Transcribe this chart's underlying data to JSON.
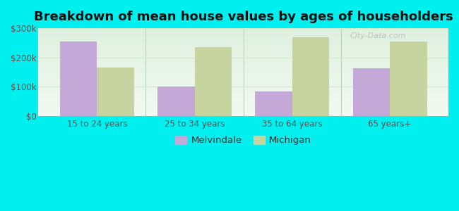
{
  "title": "Breakdown of mean house values by ages of householders",
  "categories": [
    "15 to 24 years",
    "25 to 34 years",
    "35 to 64 years",
    "65 years+"
  ],
  "melvindale": [
    255000,
    100000,
    83000,
    163000
  ],
  "michigan": [
    165000,
    235000,
    270000,
    255000
  ],
  "melvindale_color": "#c4a8d8",
  "michigan_color": "#c8d4a0",
  "background_color": "#00efef",
  "plot_bg_top": "#e8f5e8",
  "plot_bg_bottom": "#f5fdf5",
  "ylim": [
    0,
    300000
  ],
  "yticks": [
    0,
    100000,
    200000,
    300000
  ],
  "ytick_labels": [
    "$0",
    "$100k",
    "$200k",
    "$300k"
  ],
  "legend_melvindale": "Melvindale",
  "legend_michigan": "Michigan",
  "bar_width": 0.38,
  "watermark": "City-Data.com",
  "title_fontsize": 13,
  "tick_fontsize": 8.5,
  "legend_fontsize": 9.5,
  "divider_color": "#a0c8b0",
  "grid_color": "#d0e8d0",
  "axis_label_color": "#555555"
}
